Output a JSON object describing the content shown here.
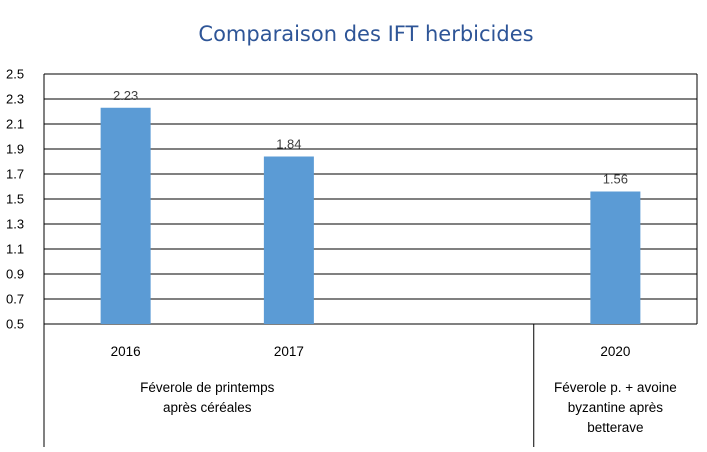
{
  "chart_data": {
    "type": "bar",
    "title": "Comparaison des IFT herbicides",
    "categories": [
      "2016",
      "2017",
      "",
      "2020"
    ],
    "values": [
      2.23,
      1.84,
      null,
      1.56
    ],
    "data_labels": [
      "2.23",
      "1.84",
      "",
      "1.56"
    ],
    "groups": [
      {
        "lines": [
          "Féverole de printemps",
          "après céréales"
        ]
      },
      {
        "lines": [
          "Féverole p. + avoine",
          "byzantine après",
          "betterave"
        ]
      }
    ],
    "yticks": [
      "2.5",
      "2.3",
      "2.1",
      "1.9",
      "1.7",
      "1.5",
      "1.3",
      "1.1",
      "0.9",
      "0.7",
      "0.5"
    ],
    "ylim": [
      0.5,
      2.5
    ],
    "grid": true,
    "colors": {
      "bar": "#5b9bd5",
      "title": "#2e5597",
      "grid": "#000000"
    }
  }
}
